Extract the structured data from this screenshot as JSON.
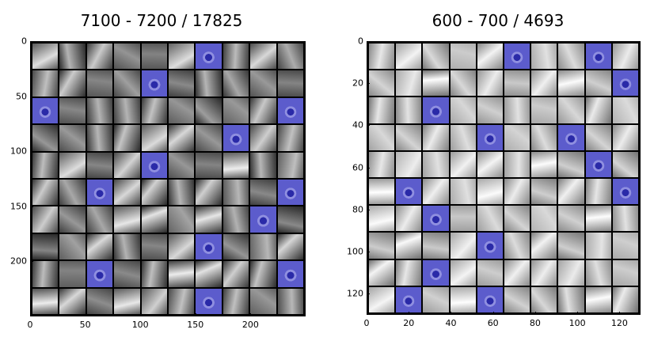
{
  "panels": [
    {
      "title": "7100 - 7200 / 17825",
      "grid": 10,
      "y_ticks": [
        "0",
        "50",
        "100",
        "150",
        "200"
      ],
      "x_ticks": [
        "0",
        "50",
        "100",
        "150",
        "200"
      ],
      "axis_max": 250,
      "tick_step": 50,
      "highlight_cells": [
        [
          0,
          6
        ],
        [
          1,
          4
        ],
        [
          2,
          0
        ],
        [
          2,
          9
        ],
        [
          3,
          7
        ],
        [
          4,
          4
        ],
        [
          5,
          2
        ],
        [
          5,
          9
        ],
        [
          6,
          8
        ],
        [
          7,
          6
        ],
        [
          8,
          2
        ],
        [
          8,
          9
        ],
        [
          9,
          6
        ]
      ]
    },
    {
      "title": "600 - 700 / 4693",
      "grid": 10,
      "y_ticks": [
        "0",
        "20",
        "40",
        "60",
        "80",
        "100",
        "120"
      ],
      "x_ticks": [
        "0",
        "20",
        "40",
        "60",
        "80",
        "100",
        "120"
      ],
      "axis_max": 130,
      "tick_step": 20,
      "highlight_cells": [
        [
          0,
          5
        ],
        [
          0,
          8
        ],
        [
          1,
          9
        ],
        [
          2,
          2
        ],
        [
          3,
          4
        ],
        [
          3,
          7
        ],
        [
          4,
          8
        ],
        [
          5,
          1
        ],
        [
          5,
          9
        ],
        [
          6,
          2
        ],
        [
          7,
          4
        ],
        [
          8,
          2
        ],
        [
          9,
          1
        ],
        [
          9,
          4
        ]
      ]
    }
  ],
  "colors": {
    "highlight": "#5c5ccc",
    "tile_dark": "#3a3a3a",
    "tile_light": "#b8b8b8"
  }
}
